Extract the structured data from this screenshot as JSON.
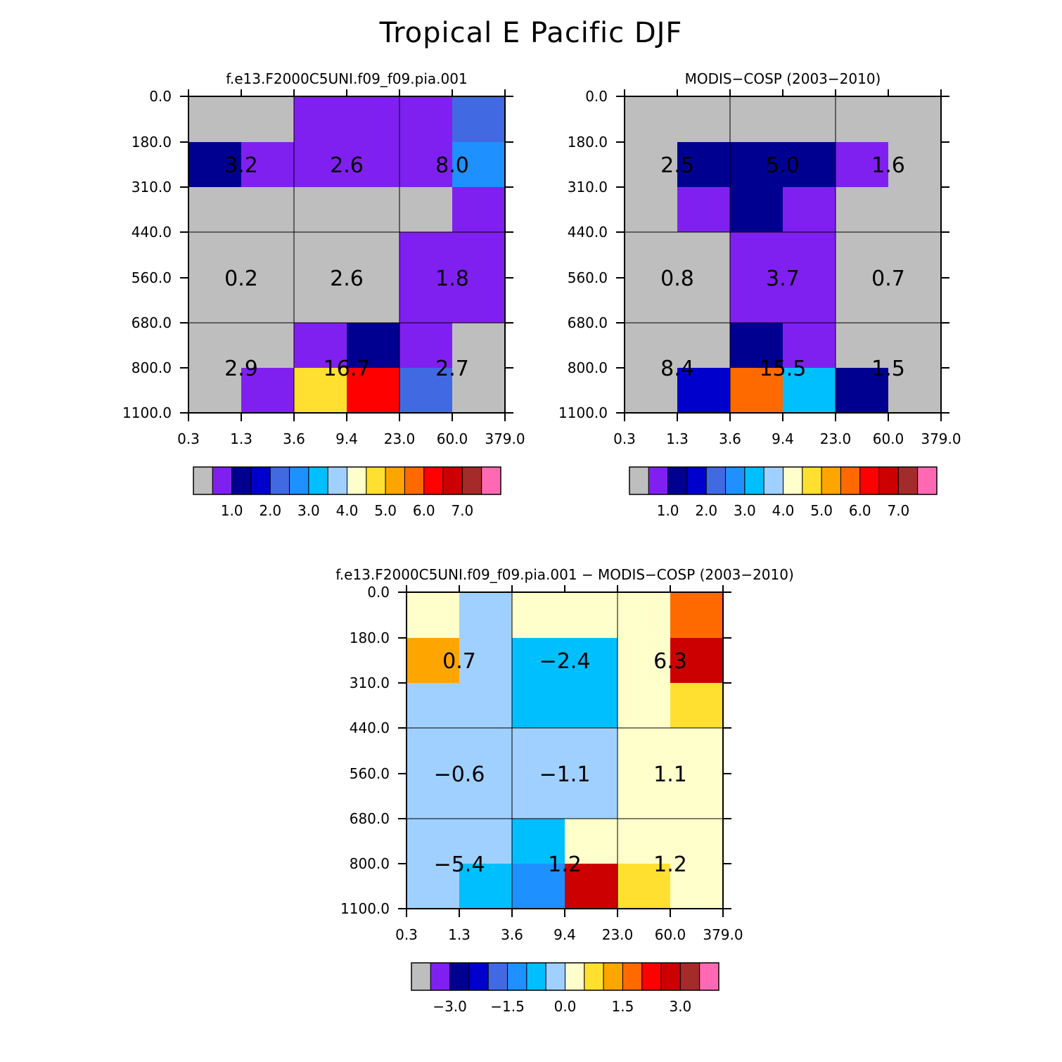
{
  "title": "Tropical E Pacific DJF",
  "chart_data": [
    {
      "type": "heatmap",
      "title": "f.e13.F2000C5UNI.f09_f09.pia.001",
      "x_ticks": [
        "0.3",
        "1.3",
        "3.6",
        "9.4",
        "23.0",
        "60.0",
        "379.0"
      ],
      "y_ticks": [
        "0.0",
        "180.0",
        "310.0",
        "440.0",
        "560.0",
        "680.0",
        "800.0",
        "1100.0"
      ],
      "cell_colors": [
        [
          "#bebebe",
          "#bebebe",
          "#8020f0",
          "#8020f0",
          "#8020f0",
          "#4169e1"
        ],
        [
          "#000090",
          "#8020f0",
          "#8020f0",
          "#8020f0",
          "#8020f0",
          "#1e90ff"
        ],
        [
          "#bebebe",
          "#bebebe",
          "#bebebe",
          "#bebebe",
          "#bebebe",
          "#8020f0"
        ],
        [
          "#bebebe",
          "#bebebe",
          "#bebebe",
          "#bebebe",
          "#8020f0",
          "#8020f0"
        ],
        [
          "#bebebe",
          "#bebebe",
          "#bebebe",
          "#bebebe",
          "#8020f0",
          "#8020f0"
        ],
        [
          "#bebebe",
          "#bebebe",
          "#8020f0",
          "#000090",
          "#8020f0",
          "#bebebe"
        ],
        [
          "#bebebe",
          "#8020f0",
          "#ffe030",
          "#ff0000",
          "#4169e1",
          "#bebebe"
        ],
        [
          "#bebebe",
          "#0000cd",
          "#a0d0ff",
          "#4169e1",
          "#8020f0",
          "#bebebe"
        ]
      ],
      "block_labels": [
        [
          "3.2",
          "2.6",
          "8.0"
        ],
        [
          "0.2",
          "2.6",
          "1.8"
        ],
        [
          "2.9",
          "16.7",
          "2.7"
        ]
      ],
      "colorbar": {
        "colors": [
          "#bebebe",
          "#8020f0",
          "#000090",
          "#0000cd",
          "#4169e1",
          "#1e90ff",
          "#00bfff",
          "#a0d0ff",
          "#ffffcc",
          "#ffe030",
          "#ffa500",
          "#ff6a00",
          "#ff0000",
          "#cc0000",
          "#a52a2a",
          "#ff69b4"
        ],
        "labels": [
          "1.0",
          "2.0",
          "3.0",
          "4.0",
          "5.0",
          "6.0",
          "7.0"
        ]
      }
    },
    {
      "type": "heatmap",
      "title": "MODIS-COSP (2003-2010)",
      "x_ticks": [
        "0.3",
        "1.3",
        "3.6",
        "9.4",
        "23.0",
        "60.0",
        "379.0"
      ],
      "y_ticks": [
        "0.0",
        "180.0",
        "310.0",
        "440.0",
        "560.0",
        "680.0",
        "800.0",
        "1100.0"
      ],
      "cell_colors": [
        [
          "#bebebe",
          "#bebebe",
          "#bebebe",
          "#bebebe",
          "#bebebe",
          "#bebebe"
        ],
        [
          "#bebebe",
          "#000090",
          "#000090",
          "#000090",
          "#8020f0",
          "#bebebe"
        ],
        [
          "#bebebe",
          "#8020f0",
          "#000090",
          "#8020f0",
          "#bebebe",
          "#bebebe"
        ],
        [
          "#bebebe",
          "#bebebe",
          "#8020f0",
          "#8020f0",
          "#bebebe",
          "#bebebe"
        ],
        [
          "#bebebe",
          "#bebebe",
          "#8020f0",
          "#8020f0",
          "#bebebe",
          "#bebebe"
        ],
        [
          "#bebebe",
          "#bebebe",
          "#000090",
          "#8020f0",
          "#bebebe",
          "#bebebe"
        ],
        [
          "#bebebe",
          "#0000cd",
          "#ff6a00",
          "#00bfff",
          "#000090",
          "#bebebe"
        ],
        [
          "#000090",
          "#ffa500",
          "#ffe030",
          "#0000cd",
          "#bebebe",
          "#bebebe"
        ]
      ],
      "block_labels": [
        [
          "2.5",
          "5.0",
          "1.6"
        ],
        [
          "0.8",
          "3.7",
          "0.7"
        ],
        [
          "8.4",
          "15.5",
          "1.5"
        ]
      ],
      "colorbar": {
        "colors": [
          "#bebebe",
          "#8020f0",
          "#000090",
          "#0000cd",
          "#4169e1",
          "#1e90ff",
          "#00bfff",
          "#a0d0ff",
          "#ffffcc",
          "#ffe030",
          "#ffa500",
          "#ff6a00",
          "#ff0000",
          "#cc0000",
          "#a52a2a",
          "#ff69b4"
        ],
        "labels": [
          "1.0",
          "2.0",
          "3.0",
          "4.0",
          "5.0",
          "6.0",
          "7.0"
        ]
      }
    },
    {
      "type": "heatmap",
      "title": "f.e13.F2000C5UNI.f09_f09.pia.001 - MODIS-COSP (2003-2010)",
      "x_ticks": [
        "0.3",
        "1.3",
        "3.6",
        "9.4",
        "23.0",
        "60.0",
        "379.0"
      ],
      "y_ticks": [
        "0.0",
        "180.0",
        "310.0",
        "440.0",
        "560.0",
        "680.0",
        "800.0",
        "1100.0"
      ],
      "cell_colors": [
        [
          "#ffffcc",
          "#a0d0ff",
          "#ffffcc",
          "#ffffcc",
          "#ffffcc",
          "#ff6a00"
        ],
        [
          "#ffa500",
          "#a0d0ff",
          "#00bfff",
          "#00bfff",
          "#ffffcc",
          "#cc0000"
        ],
        [
          "#a0d0ff",
          "#a0d0ff",
          "#00bfff",
          "#00bfff",
          "#ffffcc",
          "#ffe030"
        ],
        [
          "#a0d0ff",
          "#a0d0ff",
          "#a0d0ff",
          "#a0d0ff",
          "#ffffcc",
          "#ffffcc"
        ],
        [
          "#a0d0ff",
          "#a0d0ff",
          "#a0d0ff",
          "#a0d0ff",
          "#ffffcc",
          "#ffffcc"
        ],
        [
          "#a0d0ff",
          "#a0d0ff",
          "#00bfff",
          "#ffffcc",
          "#ffffcc",
          "#ffffcc"
        ],
        [
          "#a0d0ff",
          "#00bfff",
          "#1e90ff",
          "#cc0000",
          "#ffe030",
          "#ffffcc"
        ],
        [
          "#1e90ff",
          "#8020f0",
          "#1e90ff",
          "#ffe030",
          "#ffffcc",
          "#ffffcc"
        ]
      ],
      "block_labels": [
        [
          "0.7",
          "-2.4",
          "6.3"
        ],
        [
          "-0.6",
          "-1.1",
          "1.1"
        ],
        [
          "-5.4",
          "1.2",
          "1.2"
        ]
      ],
      "colorbar": {
        "colors": [
          "#bebebe",
          "#8020f0",
          "#000090",
          "#0000cd",
          "#4169e1",
          "#1e90ff",
          "#00bfff",
          "#a0d0ff",
          "#ffffcc",
          "#ffe030",
          "#ffa500",
          "#ff6a00",
          "#ff0000",
          "#cc0000",
          "#a52a2a",
          "#ff69b4"
        ],
        "labels": [
          "-3.0",
          "-1.5",
          "0.0",
          "1.5",
          "3.0"
        ]
      }
    }
  ]
}
